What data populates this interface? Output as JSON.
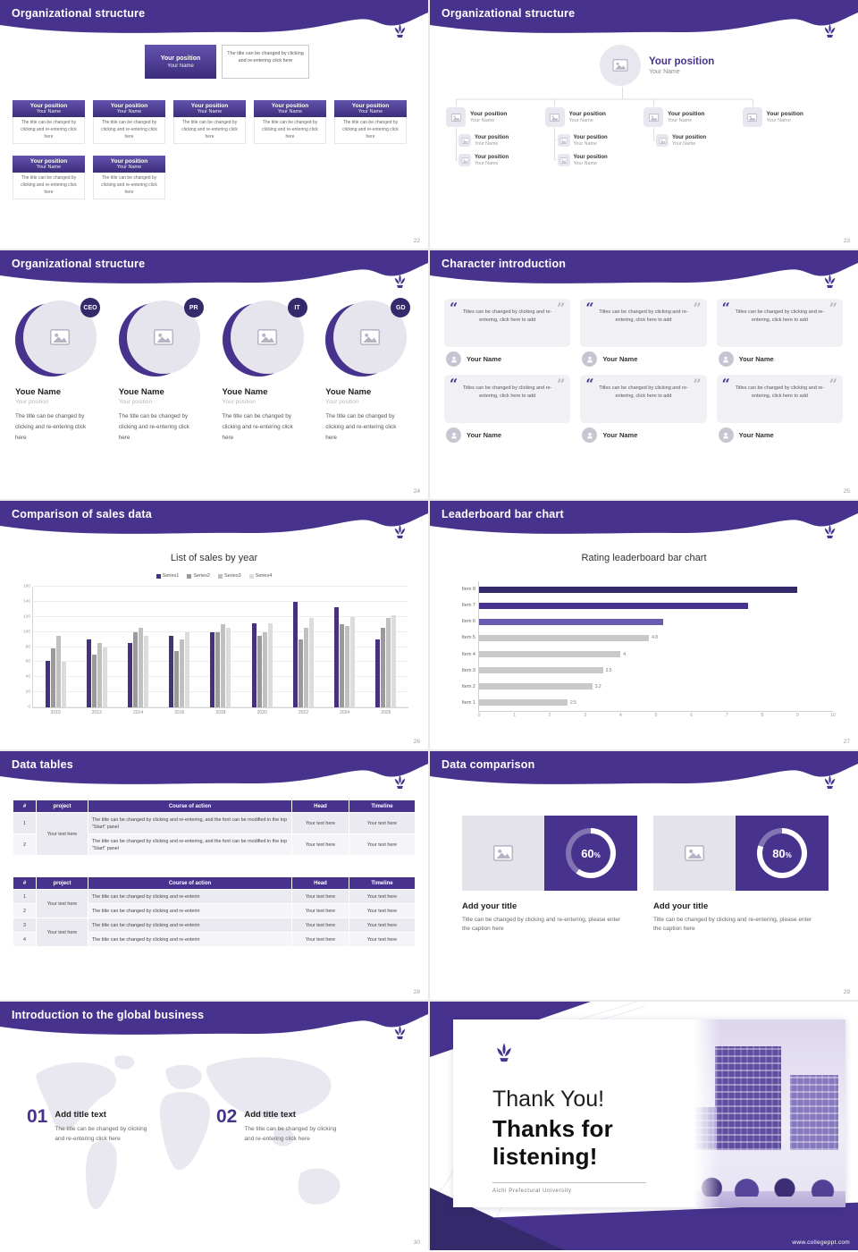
{
  "brand": {
    "accent": "#47338e",
    "accent_dark": "#342a6b",
    "site_url": "www.collegeppt.com"
  },
  "slides": {
    "org1": {
      "title": "Organizational structure",
      "page": "22",
      "box_position": "Your position",
      "box_name": "Your Name",
      "box_desc": "The title can be changed by clicking and re-entering click here"
    },
    "org2": {
      "title": "Organizational structure",
      "page": "23",
      "position": "Your position",
      "name": "Your Name"
    },
    "org3": {
      "title": "Organizational structure",
      "page": "24",
      "members": [
        {
          "badge": "CEO"
        },
        {
          "badge": "PR"
        },
        {
          "badge": "IT"
        },
        {
          "badge": "GD"
        }
      ],
      "member_name": "Youe Name",
      "member_position": "Your position",
      "member_desc": "The title can be changed by clicking and re-entering click here"
    },
    "character": {
      "title": "Character introduction",
      "page": "25",
      "quote_open": "“",
      "quote_close": "”",
      "quote": "Titles can be changed by clicking and re-entering, click here to add",
      "person_name": "Your Name"
    },
    "sales": {
      "title": "Comparison of sales data",
      "page": "26"
    },
    "leaderboard": {
      "title": "Leaderboard bar chart",
      "page": "27"
    },
    "tables": {
      "title": "Data tables",
      "page": "28",
      "headers": [
        "#",
        "project",
        "Course of action",
        "Head",
        "Timeline"
      ],
      "cell_text": "Your text here",
      "long_text": "The title can be changed by clicking and re-entering, and the font can be modified in the top \"Start\" panel",
      "short_text": "The title can be changed by clicking and re-enterin",
      "t1_rows": [
        "1",
        "2"
      ],
      "t2_rows": [
        "1",
        "2",
        "3",
        "4"
      ]
    },
    "comparison": {
      "title": "Data comparison",
      "page": "29",
      "percent_sign": "%",
      "panels": [
        {
          "percent": 60
        },
        {
          "percent": 80
        }
      ],
      "panel_title": "Add your title",
      "panel_caption": "Title can be changed by clicking and re-entering, please enter the caption here"
    },
    "global": {
      "title": "Introduction to the global business",
      "page": "30",
      "items": [
        {
          "num": "01"
        },
        {
          "num": "02"
        }
      ],
      "item_title": "Add title text",
      "item_desc": "The title can be changed by clicking and re-entering click here"
    },
    "thanks": {
      "heading1": "Thank You!",
      "heading2": "Thanks for listening!",
      "subtitle": "Aichi Prefectural University",
      "site": "www.collegeppt.com"
    }
  },
  "chart_data": [
    {
      "type": "bar",
      "title": "List of sales by year",
      "categories": [
        "2010",
        "2012",
        "2014",
        "2016",
        "2018",
        "2020",
        "2022",
        "2024",
        "2026"
      ],
      "series": [
        {
          "name": "Series1",
          "color": "#45317f",
          "values": [
            62,
            90,
            85,
            95,
            100,
            112,
            140,
            133,
            90
          ]
        },
        {
          "name": "Series2",
          "color": "#9a9a9a",
          "values": [
            78,
            70,
            100,
            75,
            100,
            95,
            90,
            110,
            105
          ]
        },
        {
          "name": "Series3",
          "color": "#c0c0c0",
          "values": [
            95,
            85,
            105,
            90,
            110,
            100,
            105,
            108,
            118
          ]
        },
        {
          "name": "Series4",
          "color": "#dcdcdc",
          "values": [
            60,
            80,
            95,
            100,
            105,
            112,
            118,
            120,
            122
          ]
        }
      ],
      "ylim": [
        0,
        160
      ],
      "ytick_step": 20,
      "grid": true,
      "legend_position": "top"
    },
    {
      "type": "bar",
      "orientation": "horizontal",
      "title": "Rating leaderboard bar chart",
      "categories": [
        "Item 8",
        "Item 7",
        "Item 6",
        "Item 5",
        "Item 4",
        "Item 3",
        "Item 2",
        "Item 1"
      ],
      "values": [
        9,
        7.6,
        5.2,
        4.8,
        4,
        3.5,
        3.2,
        2.5
      ],
      "labels": [
        "",
        "",
        "",
        "4.8",
        "4",
        "3.5",
        "3.2",
        "2.5"
      ],
      "colors": [
        "#342a6b",
        "#47338e",
        "#6a5ab0",
        "#c9c9c9",
        "#c9c9c9",
        "#c9c9c9",
        "#c9c9c9",
        "#c9c9c9"
      ],
      "xlim": [
        0,
        10
      ],
      "xticks": [
        0,
        1,
        2,
        3,
        4,
        5,
        6,
        7,
        8,
        9,
        10
      ]
    }
  ]
}
